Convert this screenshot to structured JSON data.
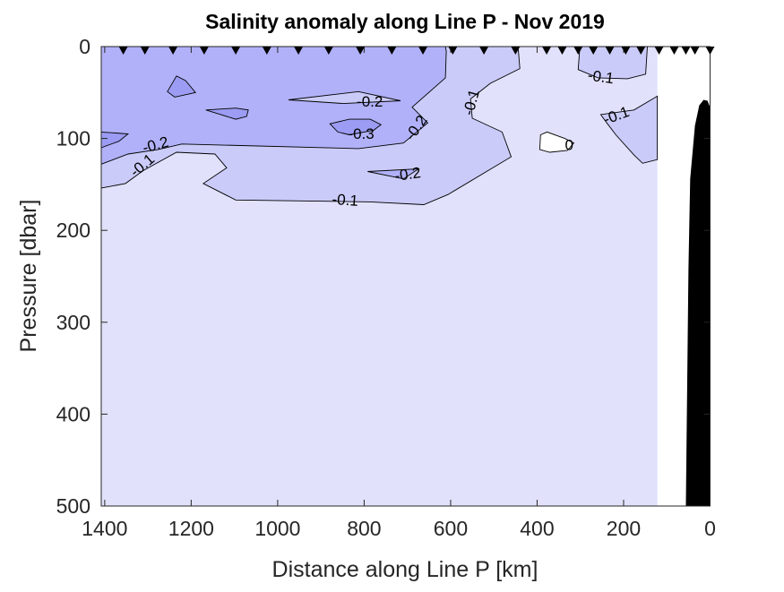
{
  "chart_data": {
    "type": "contour",
    "title": "Salinity anomaly along Line P - Nov 2019",
    "xlabel": "Distance along Line P [km]",
    "ylabel": "Pressure [dbar]",
    "xlim": [
      0,
      1408
    ],
    "ylim": [
      0,
      500
    ],
    "x_reversed": true,
    "y_reversed": true,
    "xticks": [
      0,
      200,
      400,
      600,
      800,
      1000,
      1200,
      1400
    ],
    "yticks": [
      0,
      100,
      200,
      300,
      400,
      500
    ],
    "data_extent_km": [
      122,
      1408
    ],
    "level_colors": {
      "pos": "#ffffff",
      "-0.1": "#e1e1fc",
      "-0.2": "#cbcbfa",
      "-0.3": "#b1b1f9",
      "-0.4": "#9c9cf4"
    },
    "stations_km": [
      1357,
      1307,
      1242,
      1170,
      1097,
      1025,
      952,
      882,
      809,
      736,
      664,
      595,
      523,
      450,
      378,
      342,
      305,
      270,
      232,
      195,
      160,
      118,
      83,
      56,
      35,
      0
    ],
    "regions": [
      {
        "level": "-0.2",
        "points": [
          [
            1408,
            0
          ],
          [
            444,
            0
          ],
          [
            440,
            24
          ],
          [
            508,
            40
          ],
          [
            554,
            57
          ],
          [
            550,
            78
          ],
          [
            481,
            93
          ],
          [
            460,
            120
          ],
          [
            606,
            161
          ],
          [
            662,
            172
          ],
          [
            786,
            169
          ],
          [
            1097,
            167
          ],
          [
            1172,
            149
          ],
          [
            1118,
            132
          ],
          [
            1145,
            117
          ],
          [
            1234,
            115
          ],
          [
            1311,
            135
          ],
          [
            1352,
            149
          ],
          [
            1408,
            154
          ]
        ]
      },
      {
        "level": "-0.2",
        "points": [
          [
            301,
            0
          ],
          [
            305,
            25
          ],
          [
            259,
            34
          ],
          [
            191,
            35
          ],
          [
            149,
            30
          ],
          [
            145,
            0
          ]
        ]
      },
      {
        "level": "-0.2",
        "points": [
          [
            253,
            74
          ],
          [
            176,
            69
          ],
          [
            122,
            54
          ],
          [
            122,
            123
          ],
          [
            156,
            127
          ],
          [
            176,
            118
          ],
          [
            218,
            96
          ],
          [
            239,
            83
          ]
        ]
      },
      {
        "level": "-0.3",
        "points": [
          [
            1408,
            0
          ],
          [
            612,
            0
          ],
          [
            610,
            5
          ],
          [
            612,
            34
          ],
          [
            689,
            66
          ],
          [
            653,
            83
          ],
          [
            709,
            105
          ],
          [
            813,
            111
          ],
          [
            1222,
            106
          ],
          [
            1276,
            112
          ],
          [
            1346,
            117
          ],
          [
            1408,
            128
          ]
        ]
      },
      {
        "level": "-0.2",
        "points": [
          [
            975,
            58
          ],
          [
            813,
            49
          ],
          [
            716,
            59
          ],
          [
            848,
            62
          ]
        ]
      },
      {
        "level": "-0.3",
        "points": [
          [
            792,
            136
          ],
          [
            674,
            133
          ],
          [
            709,
            144
          ]
        ]
      },
      {
        "level": "-0.4",
        "points": [
          [
            1255,
            49
          ],
          [
            1234,
            32
          ],
          [
            1213,
            37
          ],
          [
            1190,
            50
          ],
          [
            1238,
            55
          ]
        ]
      },
      {
        "level": "-0.4",
        "points": [
          [
            1166,
            69
          ],
          [
            1097,
            67
          ],
          [
            1068,
            69
          ],
          [
            1072,
            76
          ],
          [
            1097,
            79
          ]
        ]
      },
      {
        "level": "-0.4",
        "points": [
          [
            879,
            84
          ],
          [
            834,
            79
          ],
          [
            786,
            79
          ],
          [
            761,
            85
          ],
          [
            778,
            91
          ],
          [
            834,
            96
          ],
          [
            861,
            93
          ]
        ]
      },
      {
        "level": "-0.4",
        "points": [
          [
            1408,
            93
          ],
          [
            1346,
            95
          ],
          [
            1367,
            103
          ],
          [
            1408,
            110
          ]
        ]
      },
      {
        "level": "pos",
        "points": [
          [
            392,
            96
          ],
          [
            377,
            93
          ],
          [
            336,
            100
          ],
          [
            315,
            105
          ],
          [
            330,
            113
          ],
          [
            371,
            115
          ],
          [
            394,
            112
          ]
        ]
      }
    ],
    "contour_labels": [
      {
        "text": "-0.2",
        "km": 787,
        "dbar": 61,
        "angle": 0
      },
      {
        "text": "-0.3",
        "km": 807,
        "dbar": 96,
        "angle": 0
      },
      {
        "text": "-0.2",
        "km": 678,
        "dbar": 89,
        "angle": -55
      },
      {
        "text": "-0.2",
        "km": 1282,
        "dbar": 108,
        "angle": -15
      },
      {
        "text": "-0.1",
        "km": 1312,
        "dbar": 130,
        "angle": -40
      },
      {
        "text": "-0.2",
        "km": 699,
        "dbar": 140,
        "angle": -8
      },
      {
        "text": "-0.1",
        "km": 844,
        "dbar": 168,
        "angle": 4
      },
      {
        "text": "-0.1",
        "km": 550,
        "dbar": 61,
        "angle": -75
      },
      {
        "text": "-0.1",
        "km": 253,
        "dbar": 34,
        "angle": 8
      },
      {
        "text": "-0.1",
        "km": 216,
        "dbar": 76,
        "angle": -20
      },
      {
        "text": "0",
        "km": 326,
        "dbar": 108,
        "angle": 0
      }
    ],
    "bathymetry": [
      [
        56,
        500
      ],
      [
        50,
        242
      ],
      [
        46,
        144
      ],
      [
        35,
        86
      ],
      [
        25,
        64
      ],
      [
        15,
        58
      ],
      [
        6,
        59
      ],
      [
        0,
        66
      ],
      [
        0,
        500
      ]
    ]
  }
}
